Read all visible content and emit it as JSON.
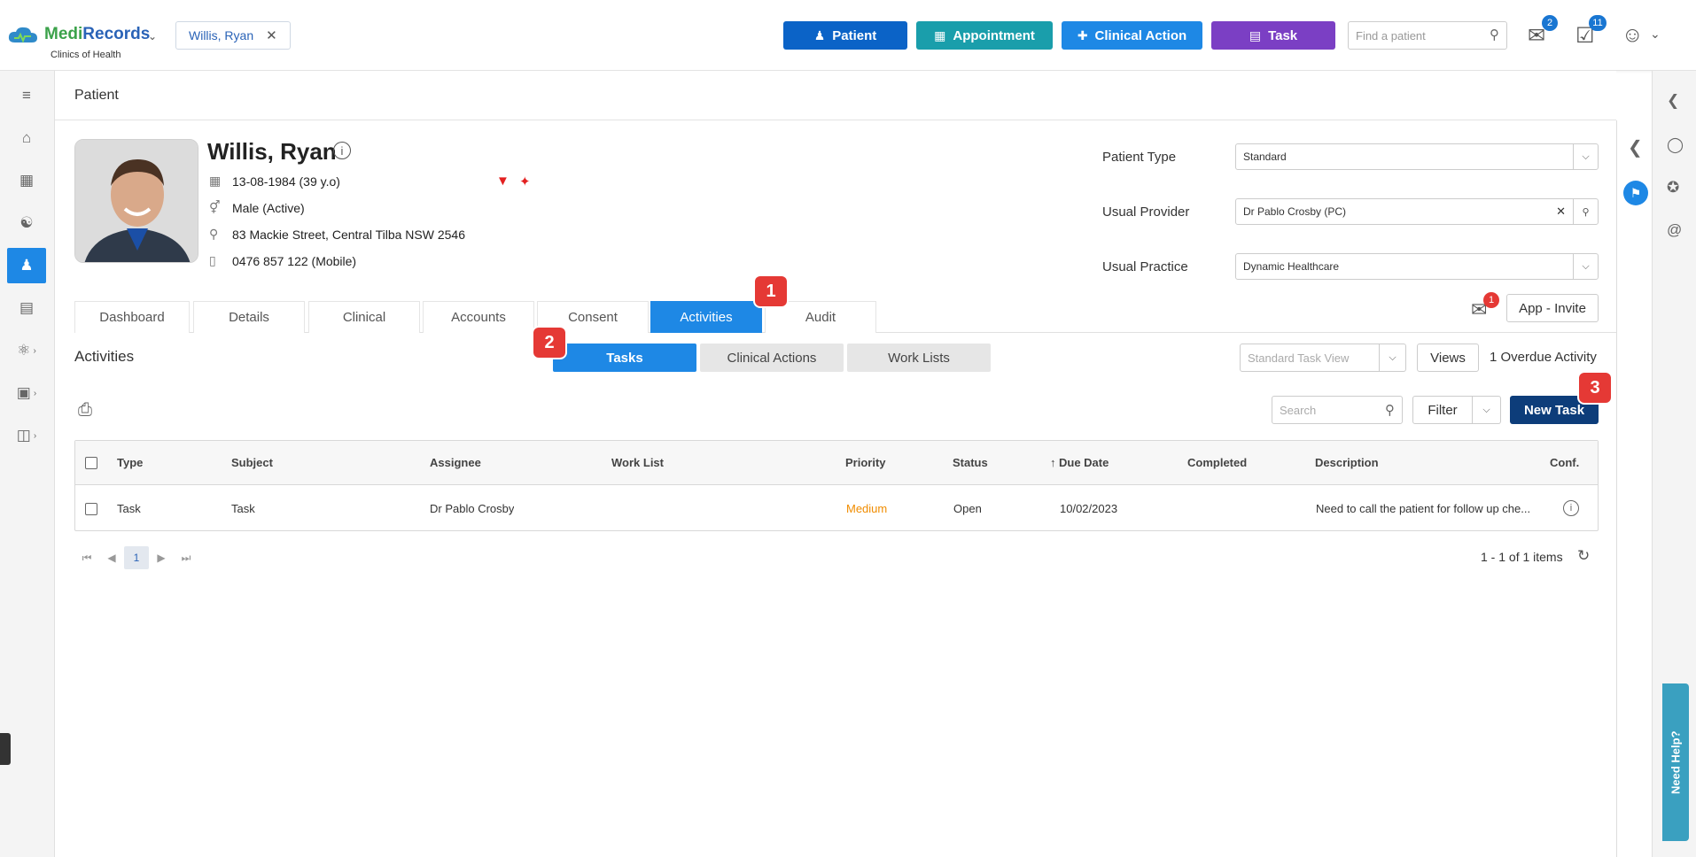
{
  "header": {
    "brand_medi": "Medi",
    "brand_records": "Records",
    "brand_sub": "Clinics of Health",
    "patient_chip": "Willis, Ryan",
    "buttons": {
      "patient": "Patient",
      "appointment": "Appointment",
      "clinical_action": "Clinical Action",
      "task": "Task"
    },
    "colors": {
      "patient": "#0b63c7",
      "appointment": "#1a9eab",
      "clinical_action": "#1e88e5",
      "task": "#7b3fc4"
    },
    "find_placeholder": "Find a patient",
    "mail_badge": "2",
    "tasks_badge": "11"
  },
  "page": {
    "title": "Patient"
  },
  "patient": {
    "name": "Willis, Ryan",
    "dob": "13-08-1984 (39 y.o)",
    "gender": "Male (Active)",
    "address": "83 Mackie Street, Central Tilba NSW 2546",
    "phone": "0476 857 122 (Mobile)"
  },
  "fields": {
    "patient_type_label": "Patient Type",
    "patient_type_value": "Standard",
    "usual_provider_label": "Usual Provider",
    "usual_provider_value": "Dr Pablo Crosby (PC)",
    "usual_practice_label": "Usual Practice",
    "usual_practice_value": "Dynamic Healthcare"
  },
  "tabs": [
    "Dashboard",
    "Details",
    "Clinical",
    "Accounts",
    "Consent",
    "Activities",
    "Audit"
  ],
  "invite": {
    "badge": "1",
    "label": "App - Invite"
  },
  "markers": [
    "1",
    "2",
    "3"
  ],
  "activities": {
    "title": "Activities",
    "segments": [
      "Tasks",
      "Clinical Actions",
      "Work Lists"
    ],
    "view_placeholder": "Standard Task View",
    "views_label": "Views",
    "overdue": "1 Overdue Activity",
    "search_placeholder": "Search",
    "filter_label": "Filter",
    "new_task_label": "New Task"
  },
  "table": {
    "columns": [
      "Type",
      "Subject",
      "Assignee",
      "Work List",
      "Priority",
      "Status",
      "Due Date",
      "Completed",
      "Description",
      "Conf."
    ],
    "rows": [
      {
        "type": "Task",
        "subject": "Task",
        "assignee": "Dr Pablo Crosby",
        "work_list": "",
        "priority": "Medium",
        "status": "Open",
        "due_date": "10/02/2023",
        "completed": "",
        "description": "Need to call the patient for follow up che..."
      }
    ],
    "priority_color": "#f08c00"
  },
  "pager": {
    "page": "1",
    "items": "1 - 1 of 1 items"
  },
  "help": {
    "label": "Need Help?"
  }
}
